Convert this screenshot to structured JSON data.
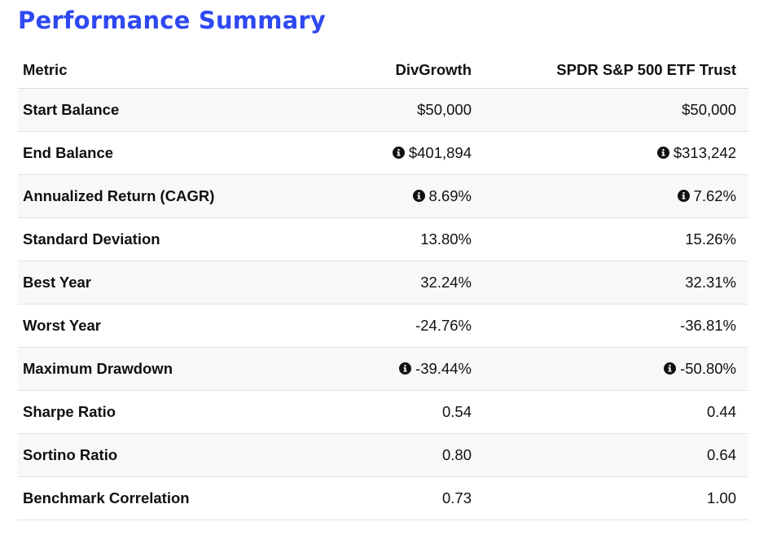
{
  "title": "Performance Summary",
  "table": {
    "headers": {
      "metric": "Metric",
      "portfolio_a": "DivGrowth",
      "portfolio_b": "SPDR S&P 500 ETF Trust"
    },
    "rows": [
      {
        "metric": "Start Balance",
        "a": "$50,000",
        "a_info": false,
        "b": "$50,000",
        "b_info": false
      },
      {
        "metric": "End Balance",
        "a": "$401,894",
        "a_info": true,
        "b": "$313,242",
        "b_info": true
      },
      {
        "metric": "Annualized Return (CAGR)",
        "a": "8.69%",
        "a_info": true,
        "b": "7.62%",
        "b_info": true
      },
      {
        "metric": "Standard Deviation",
        "a": "13.80%",
        "a_info": false,
        "b": "15.26%",
        "b_info": false
      },
      {
        "metric": "Best Year",
        "a": "32.24%",
        "a_info": false,
        "b": "32.31%",
        "b_info": false
      },
      {
        "metric": "Worst Year",
        "a": "-24.76%",
        "a_info": false,
        "b": "-36.81%",
        "b_info": false
      },
      {
        "metric": "Maximum Drawdown",
        "a": "-39.44%",
        "a_info": true,
        "b": "-50.80%",
        "b_info": true
      },
      {
        "metric": "Sharpe Ratio",
        "a": "0.54",
        "a_info": false,
        "b": "0.44",
        "b_info": false
      },
      {
        "metric": "Sortino Ratio",
        "a": "0.80",
        "a_info": false,
        "b": "0.64",
        "b_info": false
      },
      {
        "metric": "Benchmark Correlation",
        "a": "0.73",
        "a_info": false,
        "b": "1.00",
        "b_info": false
      }
    ]
  },
  "icons": {
    "info": "info-circle-icon"
  },
  "colors": {
    "title": "#2f49f0",
    "text": "#111111",
    "row_stripe": "#f8f8f8",
    "border": "#e3e3e3"
  }
}
